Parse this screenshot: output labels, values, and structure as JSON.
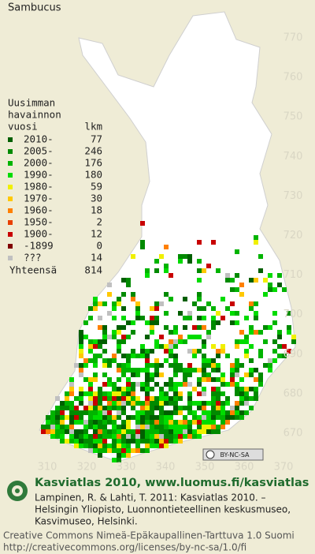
{
  "title": "Sambucus",
  "legend": {
    "heading": [
      "Uusimman",
      "havainnon",
      "vuosi"
    ],
    "count_heading": "lkm",
    "rows": [
      {
        "label": "2010-",
        "count": 77,
        "color": "#005f00"
      },
      {
        "label": "2005-",
        "count": 246,
        "color": "#008a00"
      },
      {
        "label": "2000-",
        "count": 176,
        "color": "#00b400"
      },
      {
        "label": "1990-",
        "count": 180,
        "color": "#00dc00"
      },
      {
        "label": "1980-",
        "count": 59,
        "color": "#f0f000"
      },
      {
        "label": "1970-",
        "count": 30,
        "color": "#ffc800"
      },
      {
        "label": "1960-",
        "count": 18,
        "color": "#ff8000"
      },
      {
        "label": "1950-",
        "count": 2,
        "color": "#e84000"
      },
      {
        "label": "1900-",
        "count": 12,
        "color": "#c80000"
      },
      {
        "label": "-1899",
        "count": 0,
        "color": "#800000"
      },
      {
        "label": "???",
        "count": 14,
        "color": "#c0c0c0"
      }
    ],
    "total_label": "Yhteensä",
    "total": 814
  },
  "grid": {
    "y_labels": [
      770,
      760,
      750,
      740,
      730,
      720,
      710,
      700,
      690,
      680,
      670
    ],
    "x_labels": [
      310,
      320,
      330,
      340,
      350,
      360,
      370
    ]
  },
  "license_badge": "BY-NC-SA",
  "footer": {
    "site": "Kasviatlas 2010, www.luomus.fi/kasviatlas",
    "citation": [
      "Lampinen, R. & Lahti, T. 2011: Kasviatlas 2010. –",
      "Helsingin Yliopisto, Luonnontieteellinen keskusmuseo,",
      "Kasvimuseo, Helsinki."
    ],
    "license": [
      "Creative Commons Nimeä-Epäkaupallinen-Tarttuva 1.0 Suomi",
      "http://creativecommons.org/licenses/by-nc-sa/1.0/fi"
    ]
  }
}
